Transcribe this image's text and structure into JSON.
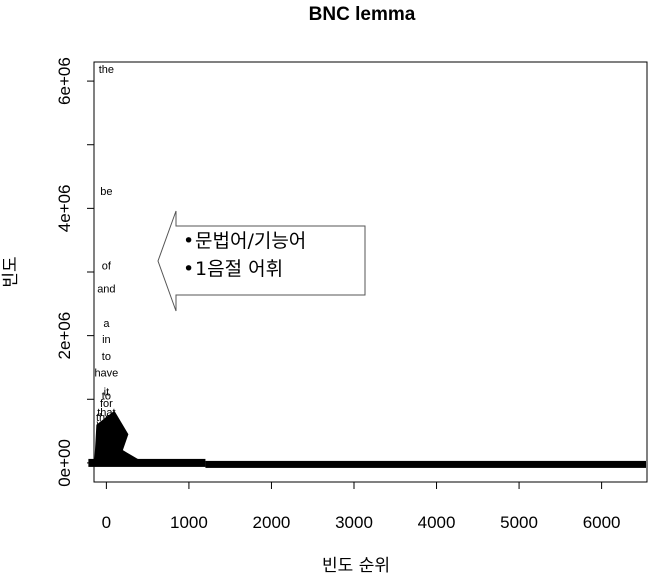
{
  "chart_data": {
    "type": "scatter",
    "title": "BNC lemma",
    "xlabel": "빈도 순위",
    "ylabel": "빈도",
    "xlim": [
      -150,
      6550
    ],
    "ylim": [
      -300000,
      6300000
    ],
    "x_ticks": [
      0,
      1000,
      2000,
      3000,
      4000,
      5000,
      6000
    ],
    "x_tick_labels": [
      "0",
      "1000",
      "2000",
      "3000",
      "4000",
      "5000",
      "6000"
    ],
    "y_ticks": [
      0,
      1000000,
      2000000,
      3000000,
      4000000,
      5000000,
      6000000
    ],
    "y_tick_labels": [
      "0e+00",
      "",
      "2e+06",
      "",
      "4e+06",
      "",
      "6e+06"
    ],
    "grid": false,
    "points": [
      {
        "x": 0,
        "y": 6190000,
        "label": "the"
      },
      {
        "x": 0,
        "y": 4270000,
        "label": "be"
      },
      {
        "x": 0,
        "y": 3100000,
        "label": "of"
      },
      {
        "x": 0,
        "y": 2740000,
        "label": "and"
      },
      {
        "x": 0,
        "y": 2200000,
        "label": "a"
      },
      {
        "x": 0,
        "y": 1950000,
        "label": "in"
      },
      {
        "x": 0,
        "y": 1680000,
        "label": "to"
      },
      {
        "x": 0,
        "y": 1420000,
        "label": "have"
      },
      {
        "x": 0,
        "y": 1120000,
        "label": "it"
      },
      {
        "x": 0,
        "y": 1060000,
        "label": "to"
      },
      {
        "x": 0,
        "y": 940000,
        "label": "for"
      },
      {
        "x": 0,
        "y": 800000,
        "label": "that"
      },
      {
        "x": 0,
        "y": 720000,
        "label": "they"
      },
      {
        "x": 0,
        "y": 620000,
        "label": "with"
      }
    ]
  },
  "callout": {
    "items": [
      "문법어/기능어",
      "1음절 어휘"
    ]
  }
}
